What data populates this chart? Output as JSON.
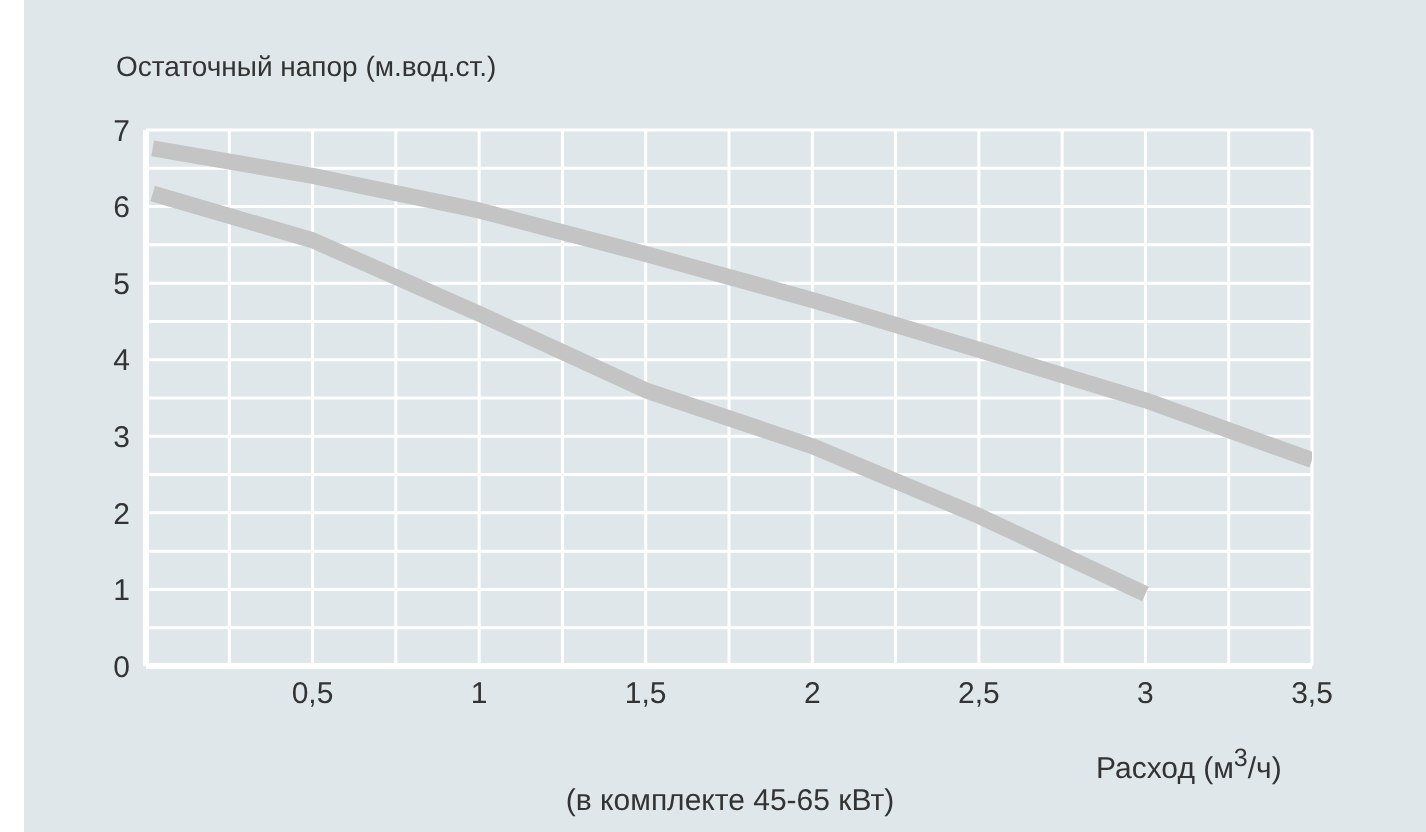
{
  "chart_data": {
    "type": "line",
    "ylabel": "Остаточный напор (м.вод.ст.)",
    "xlabel": "Расход (м$^{3}$/ч)",
    "annotations": [
      "(в комплекте 45-65 кВт)"
    ],
    "xlim": [
      0,
      3.5
    ],
    "xticks": [
      {
        "value": 0,
        "label": null
      },
      {
        "value": 0.25,
        "label": null
      },
      {
        "value": 0.5,
        "label": "0,5"
      },
      {
        "value": 0.75,
        "label": null
      },
      {
        "value": 1,
        "label": "1"
      },
      {
        "value": 1.25,
        "label": null
      },
      {
        "value": 1.5,
        "label": "1,5"
      },
      {
        "value": 1.75,
        "label": null
      },
      {
        "value": 2,
        "label": "2"
      },
      {
        "value": 2.25,
        "label": null
      },
      {
        "value": 2.5,
        "label": "2,5"
      },
      {
        "value": 2.75,
        "label": null
      },
      {
        "value": 3,
        "label": "3"
      },
      {
        "value": 3.25,
        "label": null
      },
      {
        "value": 3.5,
        "label": "3,5"
      }
    ],
    "ylim": [
      0,
      7
    ],
    "yticks": [
      0,
      {
        "value": 0.5,
        "label": null
      },
      1,
      {
        "value": 1.5,
        "label": null
      },
      2,
      {
        "value": 2.5,
        "label": null
      },
      3,
      {
        "value": 3.5,
        "label": null
      },
      4,
      {
        "value": 4.5,
        "label": null
      },
      5,
      {
        "value": 5.5,
        "label": null
      },
      6,
      {
        "value": 6.5,
        "label": null
      },
      7
    ],
    "grid": true,
    "series": [
      {
        "color": "#c4c4c4",
        "x": [
          0.02,
          0.5,
          1,
          1.5,
          2,
          2.5,
          3,
          3.5
        ],
        "values": [
          6.76,
          6.4,
          5.95,
          5.38,
          4.78,
          4.13,
          3.47,
          2.69
        ]
      },
      {
        "color": "#c4c4c4",
        "x": [
          0.02,
          0.5,
          1,
          1.5,
          2,
          2.5,
          3
        ],
        "values": [
          6.17,
          5.56,
          4.6,
          3.6,
          2.87,
          1.96,
          0.94
        ]
      }
    ]
  }
}
